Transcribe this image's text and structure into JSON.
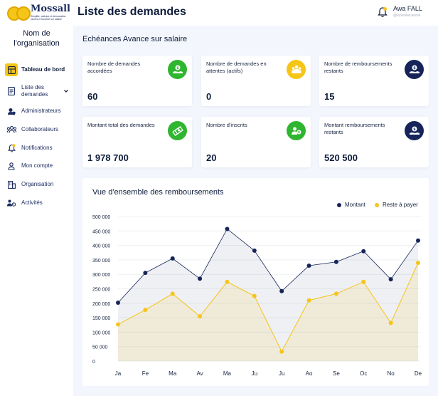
{
  "header": {
    "logo_name": "Mossall",
    "logo_tagline": "Simplifie, anticipe et démocratise l'accès et l'avance sur salaire",
    "page_title": "Liste des demandes",
    "user_name": "Awa FALL",
    "user_handle": "@laSenkecarene"
  },
  "sidebar": {
    "org_line1": "Nom de",
    "org_line2": "l'organisation",
    "items": [
      {
        "label": "Tableau de bord",
        "icon": "dashboard-icon",
        "active": true
      },
      {
        "label": "Liste des demandes",
        "icon": "document-icon",
        "active": false
      },
      {
        "label": "Administrateurs",
        "icon": "admin-shield-icon",
        "active": false
      },
      {
        "label": "Collaborateurs",
        "icon": "team-icon",
        "active": false
      },
      {
        "label": "Notifications",
        "icon": "bell-icon",
        "active": false
      },
      {
        "label": "Mon compte",
        "icon": "user-icon",
        "active": false
      },
      {
        "label": "Organisation",
        "icon": "building-icon",
        "active": false
      },
      {
        "label": "Activités",
        "icon": "activity-icon",
        "active": false
      }
    ]
  },
  "main": {
    "section_title": "Echéances Avance sur salaire",
    "cards": [
      {
        "label": "Nombre de demandes accordées",
        "value": "60",
        "icon": "money-hand-icon",
        "color": "#2fb52f"
      },
      {
        "label": "Nombre de demandes en attentes (actifs)",
        "value": "0",
        "icon": "people-group-icon",
        "color": "#f5c518"
      },
      {
        "label": "Nombre de remboursements restants",
        "value": "15",
        "icon": "money-hand-icon",
        "color": "#16245a"
      },
      {
        "label": "Montant total des demandes",
        "value": "1 978 700",
        "icon": "money-stack-icon",
        "color": "#2fb52f"
      },
      {
        "label": "Nombre d'inscrits",
        "value": "20",
        "icon": "user-coin-icon",
        "color": "#2fb52f"
      },
      {
        "label": "Montant remboursements restants",
        "value": "520 500",
        "icon": "money-hand-icon",
        "color": "#16245a"
      }
    ]
  },
  "chart_data": {
    "type": "line",
    "title": "Vue d'ensemble des remboursements",
    "categories": [
      "Ja",
      "Fe",
      "Ma",
      "Av",
      "Ma",
      "Ju",
      "Ju",
      "Ao",
      "Se",
      "Oc",
      "No",
      "De"
    ],
    "series": [
      {
        "name": "Montant",
        "color": "#16245a",
        "values": [
          202000,
          305000,
          355000,
          285000,
          457000,
          382000,
          242000,
          330000,
          343000,
          380000,
          283000,
          417000
        ]
      },
      {
        "name": "Reste à payer",
        "color": "#f5c518",
        "values": [
          127000,
          177000,
          233000,
          155000,
          274000,
          225000,
          33000,
          210000,
          233000,
          274000,
          132000,
          340000
        ]
      }
    ],
    "ylim": [
      0,
      500000
    ],
    "yticks": [
      0,
      50000,
      100000,
      150000,
      200000,
      250000,
      300000,
      350000,
      400000,
      450000,
      500000
    ],
    "ytick_labels": [
      "0",
      "50 000",
      "100 000",
      "150 000",
      "200 000",
      "250 000",
      "300 000",
      "350 000",
      "400 000",
      "450 000",
      "500 000"
    ],
    "grid": true,
    "legend_position": "top-right"
  }
}
